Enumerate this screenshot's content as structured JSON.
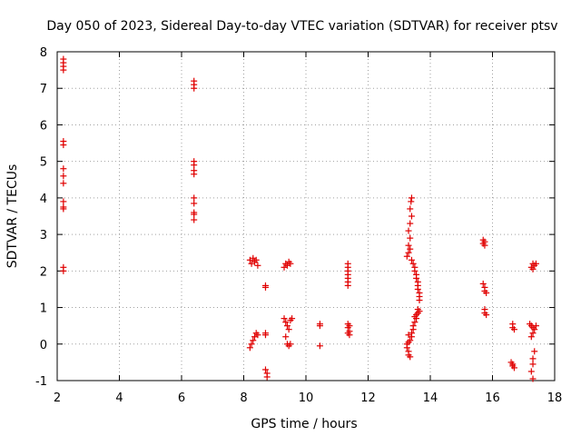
{
  "chart_data": {
    "type": "scatter",
    "title": "Day 050 of 2023, Sidereal Day-to-day VTEC variation (SDTVAR) for receiver ptsv",
    "xlabel": "GPS time / hours",
    "ylabel": "SDTVAR / TECUs",
    "xlim": [
      2,
      18
    ],
    "ylim": [
      -1,
      8
    ],
    "xticks": [
      2,
      4,
      6,
      8,
      10,
      12,
      14,
      16,
      18
    ],
    "yticks": [
      -1,
      0,
      1,
      2,
      3,
      4,
      5,
      6,
      7,
      8
    ],
    "grid": true,
    "marker": "+",
    "color": "#e00000",
    "series": [
      {
        "name": "SDTVAR",
        "points": [
          [
            2.2,
            7.8
          ],
          [
            2.2,
            7.7
          ],
          [
            2.2,
            7.6
          ],
          [
            2.2,
            7.5
          ],
          [
            2.2,
            5.55
          ],
          [
            2.2,
            5.45
          ],
          [
            2.2,
            4.8
          ],
          [
            2.2,
            4.6
          ],
          [
            2.2,
            4.4
          ],
          [
            2.2,
            3.9
          ],
          [
            2.2,
            3.75
          ],
          [
            2.2,
            3.7
          ],
          [
            2.2,
            2.1
          ],
          [
            2.2,
            2.0
          ],
          [
            6.4,
            7.2
          ],
          [
            6.4,
            7.1
          ],
          [
            6.4,
            7.0
          ],
          [
            6.4,
            5.0
          ],
          [
            6.4,
            4.9
          ],
          [
            6.4,
            4.75
          ],
          [
            6.4,
            4.65
          ],
          [
            6.4,
            4.0
          ],
          [
            6.4,
            3.85
          ],
          [
            6.4,
            3.6
          ],
          [
            6.4,
            3.55
          ],
          [
            6.4,
            3.4
          ],
          [
            8.2,
            2.3
          ],
          [
            8.25,
            2.2
          ],
          [
            8.3,
            2.35
          ],
          [
            8.35,
            2.25
          ],
          [
            8.4,
            2.3
          ],
          [
            8.45,
            2.15
          ],
          [
            8.2,
            -0.1
          ],
          [
            8.25,
            0.0
          ],
          [
            8.3,
            0.1
          ],
          [
            8.35,
            0.2
          ],
          [
            8.4,
            0.3
          ],
          [
            8.45,
            0.25
          ],
          [
            8.7,
            1.6
          ],
          [
            8.7,
            1.55
          ],
          [
            8.7,
            0.3
          ],
          [
            8.7,
            0.25
          ],
          [
            8.7,
            -0.7
          ],
          [
            8.75,
            -0.8
          ],
          [
            8.75,
            -0.9
          ],
          [
            9.3,
            2.1
          ],
          [
            9.35,
            2.2
          ],
          [
            9.4,
            2.15
          ],
          [
            9.45,
            2.25
          ],
          [
            9.5,
            2.2
          ],
          [
            9.3,
            0.7
          ],
          [
            9.35,
            0.6
          ],
          [
            9.4,
            0.5
          ],
          [
            9.45,
            0.4
          ],
          [
            9.5,
            0.65
          ],
          [
            9.55,
            0.7
          ],
          [
            9.35,
            0.2
          ],
          [
            9.4,
            0.0
          ],
          [
            9.45,
            -0.05
          ],
          [
            9.5,
            0.0
          ],
          [
            10.45,
            0.55
          ],
          [
            10.45,
            0.5
          ],
          [
            10.45,
            -0.05
          ],
          [
            11.35,
            2.2
          ],
          [
            11.35,
            2.1
          ],
          [
            11.35,
            2.0
          ],
          [
            11.35,
            1.9
          ],
          [
            11.35,
            1.8
          ],
          [
            11.35,
            1.7
          ],
          [
            11.35,
            1.6
          ],
          [
            11.35,
            0.55
          ],
          [
            11.4,
            0.5
          ],
          [
            11.35,
            0.45
          ],
          [
            11.4,
            0.35
          ],
          [
            11.35,
            0.3
          ],
          [
            11.4,
            0.25
          ],
          [
            13.4,
            4.0
          ],
          [
            13.38,
            3.9
          ],
          [
            13.35,
            3.7
          ],
          [
            13.4,
            3.5
          ],
          [
            13.35,
            3.3
          ],
          [
            13.3,
            3.1
          ],
          [
            13.35,
            2.9
          ],
          [
            13.3,
            2.7
          ],
          [
            13.35,
            2.6
          ],
          [
            13.3,
            2.5
          ],
          [
            13.25,
            2.4
          ],
          [
            13.4,
            2.3
          ],
          [
            13.45,
            2.2
          ],
          [
            13.5,
            2.1
          ],
          [
            13.5,
            2.0
          ],
          [
            13.55,
            1.9
          ],
          [
            13.55,
            1.8
          ],
          [
            13.6,
            1.7
          ],
          [
            13.6,
            1.6
          ],
          [
            13.6,
            1.5
          ],
          [
            13.65,
            1.4
          ],
          [
            13.65,
            1.3
          ],
          [
            13.65,
            1.2
          ],
          [
            13.6,
            0.95
          ],
          [
            13.65,
            0.9
          ],
          [
            13.6,
            0.85
          ],
          [
            13.55,
            0.8
          ],
          [
            13.5,
            0.75
          ],
          [
            13.55,
            0.7
          ],
          [
            13.5,
            0.6
          ],
          [
            13.45,
            0.5
          ],
          [
            13.45,
            0.4
          ],
          [
            13.4,
            0.3
          ],
          [
            13.4,
            0.2
          ],
          [
            13.35,
            0.1
          ],
          [
            13.3,
            0.25
          ],
          [
            13.3,
            0.05
          ],
          [
            13.25,
            0.0
          ],
          [
            13.25,
            -0.1
          ],
          [
            13.3,
            -0.2
          ],
          [
            13.3,
            -0.3
          ],
          [
            13.35,
            -0.35
          ],
          [
            15.7,
            2.85
          ],
          [
            15.75,
            2.8
          ],
          [
            15.7,
            2.75
          ],
          [
            15.75,
            2.7
          ],
          [
            15.7,
            1.65
          ],
          [
            15.75,
            1.55
          ],
          [
            15.75,
            1.45
          ],
          [
            15.8,
            1.4
          ],
          [
            15.75,
            0.95
          ],
          [
            15.75,
            0.85
          ],
          [
            15.8,
            0.8
          ],
          [
            16.65,
            0.55
          ],
          [
            16.65,
            0.45
          ],
          [
            16.7,
            0.4
          ],
          [
            16.6,
            -0.5
          ],
          [
            16.65,
            -0.55
          ],
          [
            16.65,
            -0.6
          ],
          [
            16.7,
            -0.65
          ],
          [
            17.3,
            2.2
          ],
          [
            17.25,
            2.1
          ],
          [
            17.3,
            2.05
          ],
          [
            17.35,
            2.15
          ],
          [
            17.4,
            2.2
          ],
          [
            17.2,
            0.55
          ],
          [
            17.25,
            0.5
          ],
          [
            17.3,
            0.45
          ],
          [
            17.35,
            0.4
          ],
          [
            17.3,
            0.3
          ],
          [
            17.25,
            0.2
          ],
          [
            17.4,
            0.5
          ],
          [
            17.35,
            -0.2
          ],
          [
            17.3,
            -0.4
          ],
          [
            17.3,
            -0.55
          ],
          [
            17.25,
            -0.75
          ],
          [
            17.3,
            -0.95
          ]
        ]
      }
    ]
  }
}
